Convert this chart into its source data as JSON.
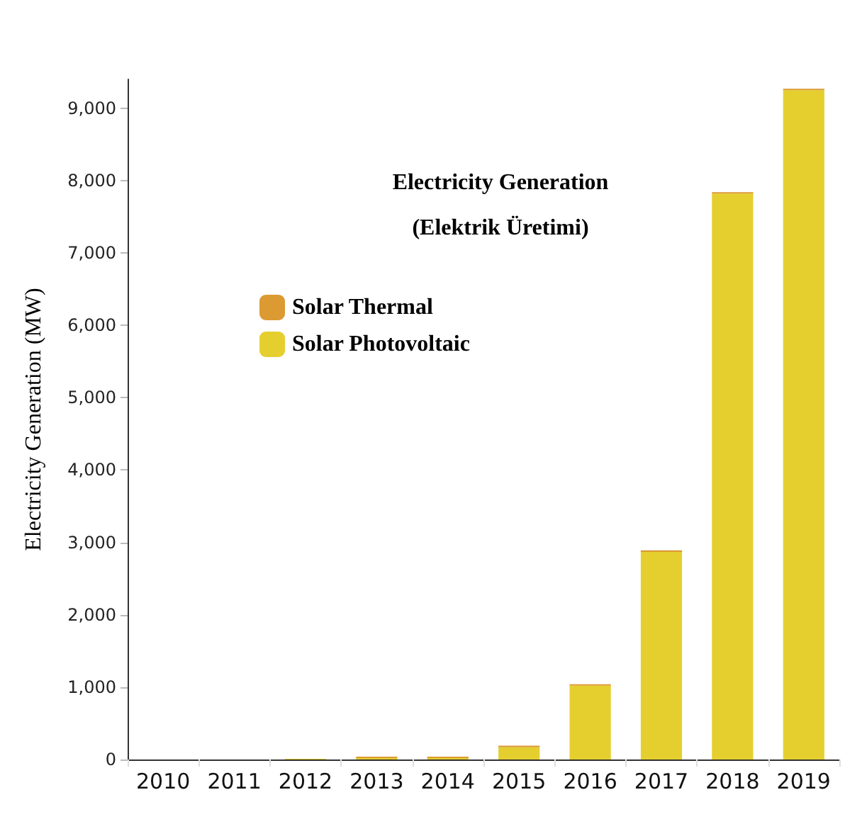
{
  "chart_data": {
    "type": "bar",
    "title": "Electricity Generation",
    "subtitle": "(Elektrik Üretimi)",
    "ylabel": "Electricity Generation (MW)",
    "categories": [
      "2010",
      "2011",
      "2012",
      "2013",
      "2014",
      "2015",
      "2016",
      "2017",
      "2018",
      "2019"
    ],
    "stacked": true,
    "series": [
      {
        "name": "Solar Photovoltaic",
        "color": "#e5cf2f",
        "values": [
          0,
          0,
          10,
          20,
          20,
          170,
          1020,
          2870,
          7820,
          9250
        ]
      },
      {
        "name": "Solar Thermal",
        "color": "#dc9a32",
        "values": [
          0,
          0,
          0,
          20,
          20,
          20,
          20,
          20,
          20,
          20
        ]
      }
    ],
    "ylim": [
      0,
      9400
    ],
    "yticks": [
      {
        "value": 0,
        "label": "0"
      },
      {
        "value": 1000,
        "label": "1,000"
      },
      {
        "value": 2000,
        "label": "2,000"
      },
      {
        "value": 3000,
        "label": "3,000"
      },
      {
        "value": 4000,
        "label": "4,000"
      },
      {
        "value": 5000,
        "label": "5,000"
      },
      {
        "value": 6000,
        "label": "6,000"
      },
      {
        "value": 7000,
        "label": "7,000"
      },
      {
        "value": 8000,
        "label": "8,000"
      },
      {
        "value": 9000,
        "label": "9,000"
      }
    ],
    "grid": false,
    "legend": "top left"
  }
}
